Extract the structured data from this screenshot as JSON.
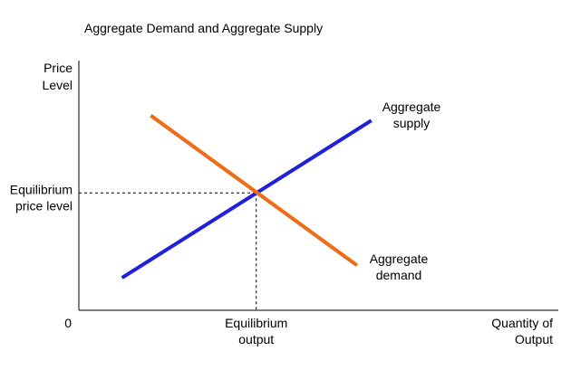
{
  "chart_data": {
    "type": "line",
    "title": "Aggregate Demand and Aggregate Supply",
    "ylabel": [
      "Price",
      "Level"
    ],
    "xlabel": [
      "Quantity of",
      "Output"
    ],
    "origin_label": "0",
    "xlim": [
      0,
      100
    ],
    "ylim": [
      0,
      100
    ],
    "grid": false,
    "series": [
      {
        "name": "Aggregate supply",
        "label_lines": [
          "Aggregate",
          "supply"
        ],
        "color": "#1e1ee6",
        "x": [
          9,
          61
        ],
        "y": [
          13,
          76
        ]
      },
      {
        "name": "Aggregate demand",
        "label_lines": [
          "Aggregate",
          "demand"
        ],
        "color": "#f26a12",
        "x": [
          15,
          58
        ],
        "y": [
          78,
          18
        ]
      }
    ],
    "equilibrium": {
      "x": 37,
      "y": 47,
      "x_label": [
        "Equilibrium",
        "output"
      ],
      "y_label": [
        "Equilibrium",
        "price level"
      ]
    }
  }
}
